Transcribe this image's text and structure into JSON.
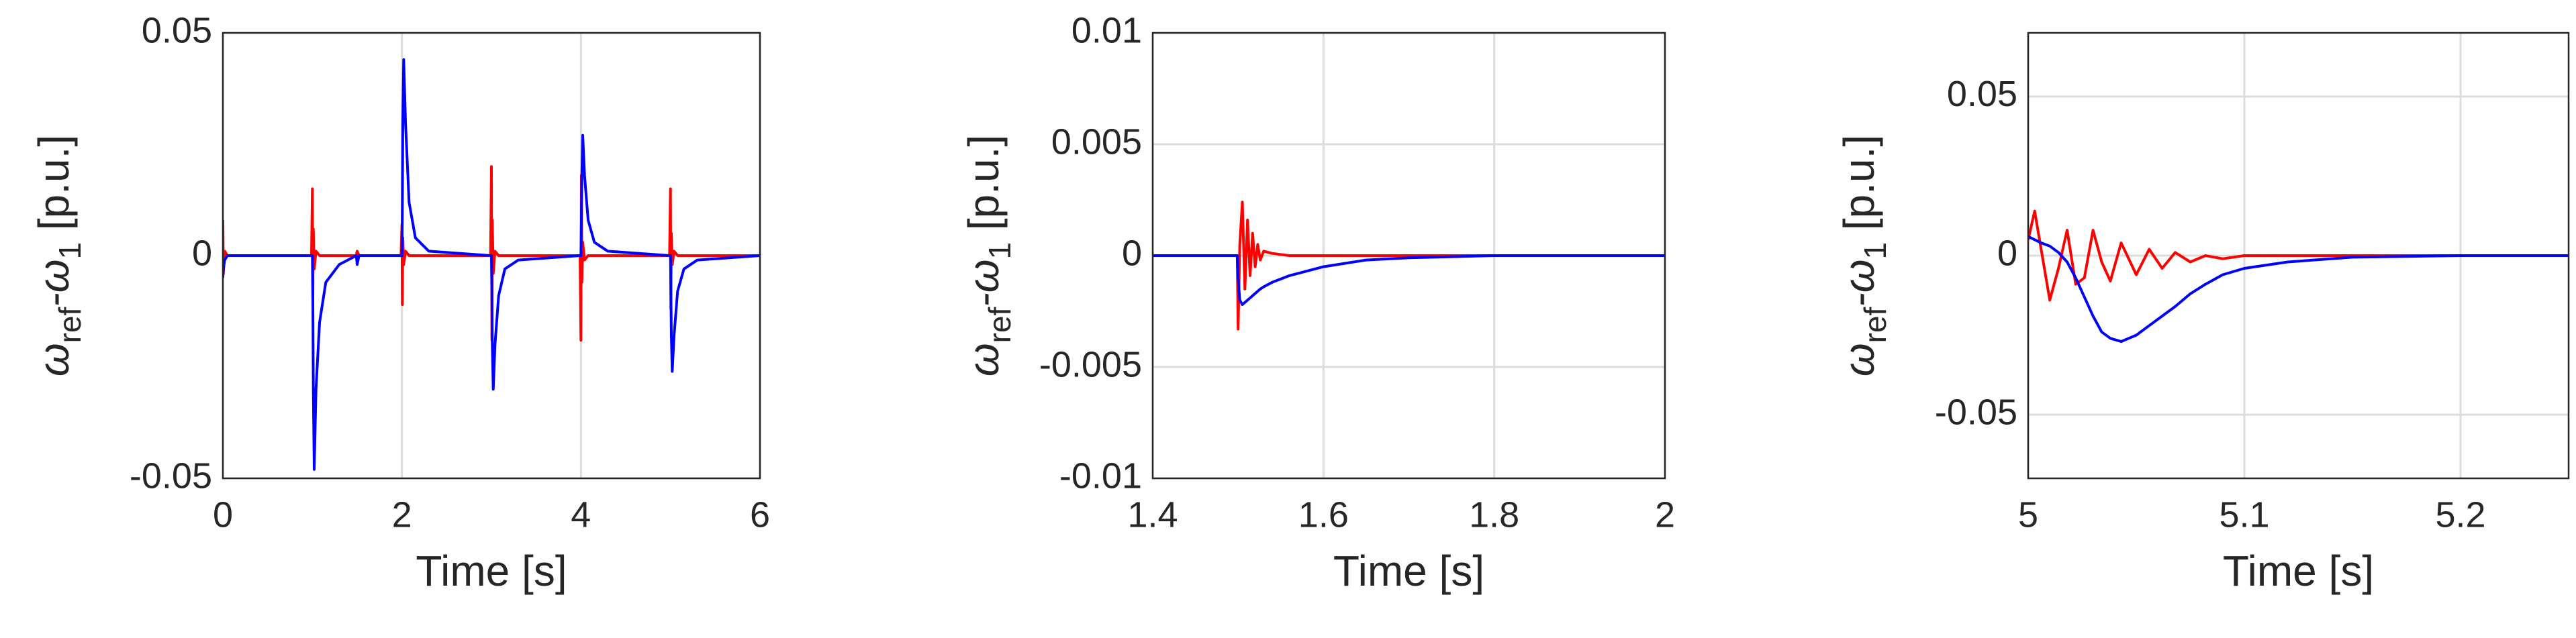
{
  "chart_data": [
    {
      "type": "line",
      "xlabel": "Time [s]",
      "ylabel": [
        "ω",
        "ref",
        "-ω",
        "1",
        " [p.u.]"
      ],
      "xlim": [
        0,
        6
      ],
      "ylim": [
        -0.05,
        0.05
      ],
      "xticks": [
        0,
        2,
        4,
        6
      ],
      "yticks": [
        -0.05,
        0,
        0.05
      ],
      "grid": true,
      "x": [
        0,
        0.005,
        0.02,
        0.05,
        0.1,
        0.99,
        1.0,
        1.005,
        1.01,
        1.02,
        1.04,
        1.08,
        1.15,
        1.3,
        1.49,
        1.5,
        1.52,
        1.99,
        2.0,
        2.005,
        2.01,
        2.02,
        2.04,
        2.08,
        2.15,
        2.3,
        2.99,
        3.0,
        3.005,
        3.01,
        3.02,
        3.04,
        3.08,
        3.15,
        3.3,
        3.99,
        4.0,
        4.005,
        4.01,
        4.02,
        4.04,
        4.08,
        4.15,
        4.3,
        4.99,
        5.0,
        5.005,
        5.01,
        5.02,
        5.04,
        5.08,
        5.15,
        5.3,
        6
      ],
      "series": [
        {
          "color": "#ff0000",
          "values": [
            0.008,
            -0.004,
            0.001,
            0,
            0,
            0,
            0.015,
            -0.01,
            0.006,
            -0.003,
            0.001,
            0,
            0,
            0,
            0,
            0.001,
            0,
            0,
            0.007,
            -0.011,
            0.004,
            -0.002,
            0.001,
            0,
            0,
            0,
            0,
            0.02,
            -0.019,
            0.008,
            -0.004,
            0.001,
            0,
            0,
            0,
            0,
            -0.019,
            0.018,
            -0.006,
            0.003,
            -0.001,
            0,
            0,
            0,
            0,
            0.015,
            -0.012,
            0.005,
            -0.002,
            0.001,
            0,
            0,
            0,
            0
          ]
        },
        {
          "color": "#0000ff",
          "values": [
            -0.005,
            -0.003,
            -0.001,
            0,
            0,
            0,
            0,
            -0.01,
            -0.03,
            -0.048,
            -0.03,
            -0.015,
            -0.006,
            -0.002,
            0,
            -0.002,
            0,
            0,
            0,
            0.01,
            0.03,
            0.044,
            0.03,
            0.012,
            0.004,
            0.001,
            0,
            0,
            -0.008,
            -0.02,
            -0.03,
            -0.02,
            -0.009,
            -0.003,
            -0.001,
            0,
            0,
            0.008,
            0.018,
            0.027,
            0.018,
            0.008,
            0.003,
            0.001,
            0,
            0,
            -0.008,
            -0.018,
            -0.026,
            -0.018,
            -0.008,
            -0.003,
            -0.001,
            0
          ]
        }
      ]
    },
    {
      "type": "line",
      "xlabel": "Time [s]",
      "ylabel": [
        "ω",
        "ref",
        "-ω",
        "1",
        " [p.u.]"
      ],
      "xlim": [
        1.4,
        2
      ],
      "ylim": [
        -0.01,
        0.01
      ],
      "xticks": [
        1.4,
        1.6,
        1.8,
        2
      ],
      "yticks": [
        -0.01,
        -0.005,
        0,
        0.005,
        0.01
      ],
      "grid": true,
      "x": [
        1.4,
        1.499,
        1.5,
        1.502,
        1.505,
        1.508,
        1.511,
        1.514,
        1.517,
        1.52,
        1.523,
        1.526,
        1.53,
        1.54,
        1.56,
        1.6,
        1.65,
        1.7,
        1.8,
        2
      ],
      "series": [
        {
          "color": "#ff0000",
          "values": [
            0,
            0,
            -0.0033,
            0.0005,
            0.0024,
            -0.0015,
            0.0016,
            -0.0009,
            0.001,
            -0.0005,
            0.0005,
            -0.0002,
            0.0002,
            0.0001,
            0,
            0,
            0,
            0,
            0,
            0
          ]
        },
        {
          "color": "#0000ff",
          "values": [
            0,
            0,
            -0.001,
            -0.002,
            -0.0022,
            -0.0021,
            -0.002,
            -0.0019,
            -0.0018,
            -0.0017,
            -0.0016,
            -0.0015,
            -0.0014,
            -0.0012,
            -0.0009,
            -0.0005,
            -0.0002,
            -0.0001,
            0,
            0
          ]
        }
      ]
    },
    {
      "type": "line",
      "xlabel": "Time [s]",
      "ylabel": [
        "ω",
        "ref",
        "-ω",
        "1",
        " [p.u.]"
      ],
      "xlim": [
        5,
        5.25
      ],
      "ylim": [
        -0.07,
        0.07
      ],
      "xticks": [
        5,
        5.1,
        5.2
      ],
      "yticks": [
        -0.05,
        0,
        0.05
      ],
      "grid": true,
      "x": [
        5,
        5.003,
        5.006,
        5.01,
        5.014,
        5.018,
        5.022,
        5.026,
        5.03,
        5.034,
        5.038,
        5.043,
        5.05,
        5.056,
        5.062,
        5.068,
        5.075,
        5.082,
        5.09,
        5.1,
        5.12,
        5.15,
        5.2,
        5.25
      ],
      "series": [
        {
          "color": "#ff0000",
          "values": [
            0.005,
            0.014,
            0.002,
            -0.014,
            -0.004,
            0.008,
            -0.009,
            -0.007,
            0.008,
            -0.002,
            -0.008,
            0.004,
            -0.006,
            0.002,
            -0.004,
            0.001,
            -0.002,
            0,
            -0.001,
            0,
            0,
            0,
            0,
            0
          ]
        },
        {
          "color": "#0000ff",
          "values": [
            0.006,
            0.005,
            0.004,
            0.003,
            0.001,
            -0.002,
            -0.007,
            -0.013,
            -0.019,
            -0.024,
            -0.026,
            -0.027,
            -0.025,
            -0.022,
            -0.019,
            -0.016,
            -0.012,
            -0.009,
            -0.006,
            -0.004,
            -0.002,
            -0.0005,
            0,
            0
          ]
        }
      ]
    }
  ]
}
